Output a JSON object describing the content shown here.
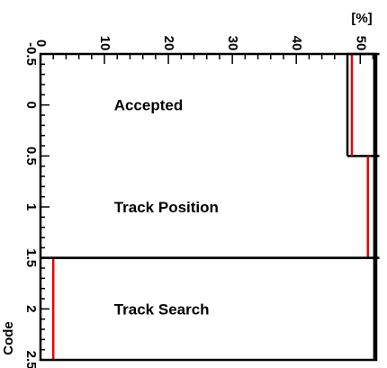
{
  "chart_data": {
    "type": "bar",
    "orientation": "horizontal",
    "title": "",
    "xlabel": "[%]",
    "ylabel": "Code",
    "xlim": [
      0,
      52.5
    ],
    "ylim": [
      -0.5,
      2.5
    ],
    "x_ticks": [
      0,
      10,
      20,
      30,
      40,
      50
    ],
    "x_tick_labels": [
      "0",
      "10",
      "20",
      "30",
      "40",
      "50"
    ],
    "y_ticks": [
      -0.5,
      0,
      0.5,
      1,
      1.5,
      2,
      2.5
    ],
    "y_tick_labels": [
      "-0.5",
      "0",
      "0.5",
      "1",
      "1.5",
      "2",
      "2.5"
    ],
    "grid": false,
    "categories": [
      "Accepted",
      "Track Position",
      "Track Search"
    ],
    "series": [
      {
        "values": [
          52.2,
          52.2,
          52.2
        ],
        "lows": [
          48.0,
          53.0,
          0.0
        ],
        "highs": [
          53.0,
          52.2,
          52.2
        ],
        "color": "#000000"
      },
      {
        "values": [
          48.7,
          51.2,
          2.0
        ],
        "color": "#e60000"
      }
    ]
  }
}
